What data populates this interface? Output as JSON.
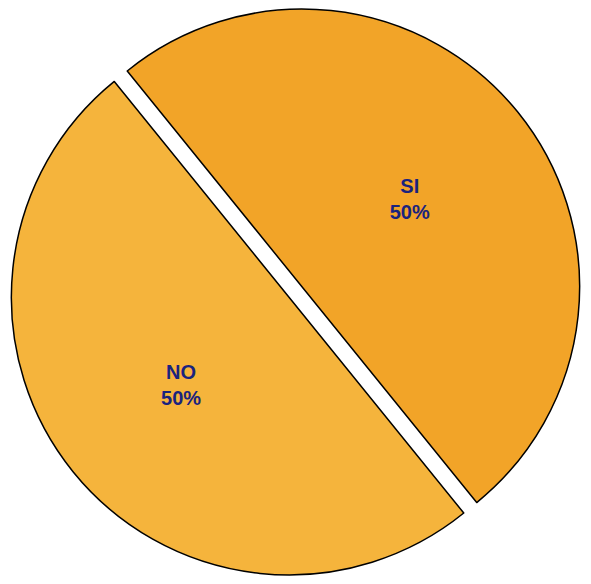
{
  "chart_data": {
    "type": "pie",
    "categories": [
      "SI",
      "NO"
    ],
    "values": [
      50,
      50
    ],
    "value_labels": [
      "50%",
      "50%"
    ],
    "colors": [
      "#f2a428",
      "#f5b43c"
    ],
    "data_labels": true,
    "legend": false
  }
}
